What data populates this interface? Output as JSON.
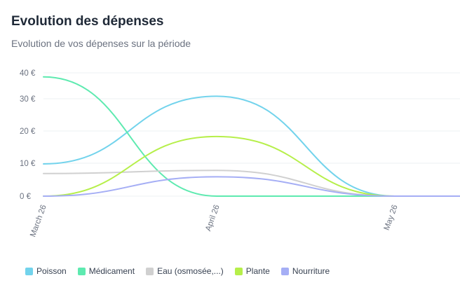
{
  "title": "Evolution des dépenses",
  "subtitle": "Evolution de vos dépenses sur la période",
  "chart_data": {
    "type": "line",
    "categories": [
      "March 26",
      "April 26",
      "May 26"
    ],
    "y_ticks": [
      "0 €",
      "10 €",
      "20 €",
      "30 €",
      "40 €"
    ],
    "ylim": [
      0,
      40
    ],
    "series": [
      {
        "name": "Poisson",
        "color": "#72d3ec",
        "values": [
          10,
          31,
          0
        ]
      },
      {
        "name": "Médicament",
        "color": "#5eeab0",
        "values": [
          37,
          0,
          0
        ]
      },
      {
        "name": "Eau (osmosée,...)",
        "color": "#d0d0d0",
        "values": [
          7,
          8,
          0
        ]
      },
      {
        "name": "Plante",
        "color": "#b6ef4a",
        "values": [
          0,
          18.5,
          0
        ]
      },
      {
        "name": "Nourriture",
        "color": "#a5aef5",
        "values": [
          0,
          6,
          0
        ]
      }
    ]
  }
}
